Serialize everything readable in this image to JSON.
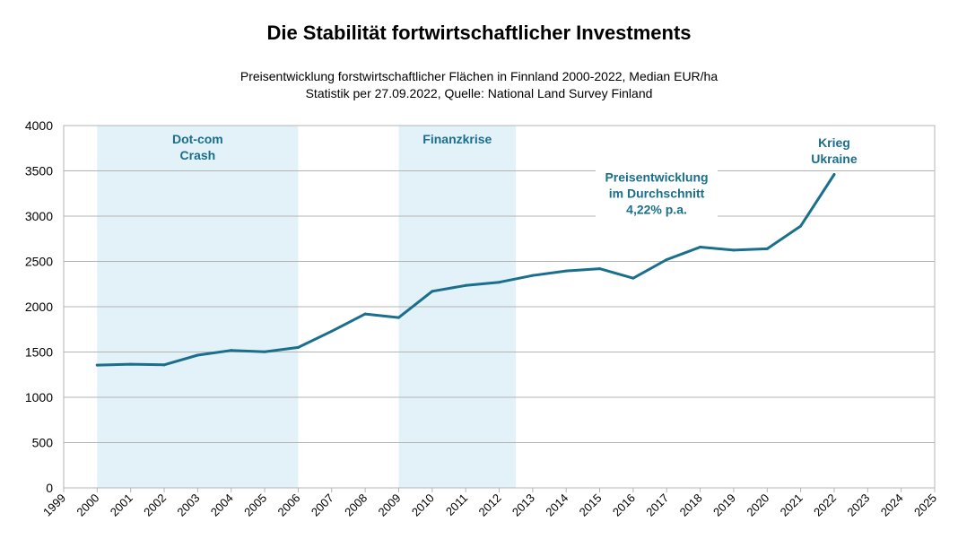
{
  "chart_data": {
    "type": "line",
    "title": "Die Stabilität fortwirtschaftlicher Investments",
    "subtitle": [
      "Preisentwicklung forstwirtschaftlicher Flächen in Finnland 2000-2022, Median EUR/ha",
      "Statistik per 27.09.2022, Quelle: National Land Survey Finland"
    ],
    "xlabel": "",
    "ylabel": "",
    "xlim": [
      1999,
      2025
    ],
    "ylim": [
      0,
      4000
    ],
    "x_ticks": [
      "1999",
      "2000",
      "2001",
      "2002",
      "2003",
      "2004",
      "2005",
      "2006",
      "2007",
      "2008",
      "2009",
      "2010",
      "2011",
      "2012",
      "2013",
      "2014",
      "2015",
      "2016",
      "2017",
      "2018",
      "2019",
      "2020",
      "2021",
      "2022",
      "2023",
      "2024",
      "2025"
    ],
    "y_ticks": [
      0,
      500,
      1000,
      1500,
      2000,
      2500,
      3000,
      3500,
      4000
    ],
    "grid": "horizontal",
    "line_color": "#1a6f8c",
    "band_color": "#e3f1f8",
    "series": [
      {
        "x": [
          2000,
          2001,
          2002,
          2003,
          2004,
          2005,
          2006,
          2007,
          2008,
          2009,
          2010,
          2011,
          2012,
          2013,
          2014,
          2015,
          2016,
          2017,
          2018,
          2019,
          2020,
          2021,
          2022
        ],
        "values": [
          1355,
          1365,
          1358,
          1465,
          1518,
          1503,
          1550,
          1730,
          1920,
          1880,
          2170,
          2235,
          2270,
          2345,
          2395,
          2420,
          2315,
          2520,
          2658,
          2625,
          2640,
          2890,
          3460
        ]
      }
    ],
    "shaded_periods": [
      {
        "start": 2000,
        "end": 2006,
        "label": [
          "Dot-com",
          "Crash"
        ]
      },
      {
        "start": 2009,
        "end": 2012.5,
        "label": [
          "Finanzkrise"
        ]
      }
    ],
    "annotations": [
      {
        "x": 2022,
        "y": 3760,
        "lines": [
          "Krieg",
          "Ukraine"
        ]
      },
      {
        "x": 2016.7,
        "y": 3380,
        "lines": [
          "Preisentwicklung",
          "im Durchschnitt",
          "4,22% p.a."
        ]
      }
    ]
  }
}
